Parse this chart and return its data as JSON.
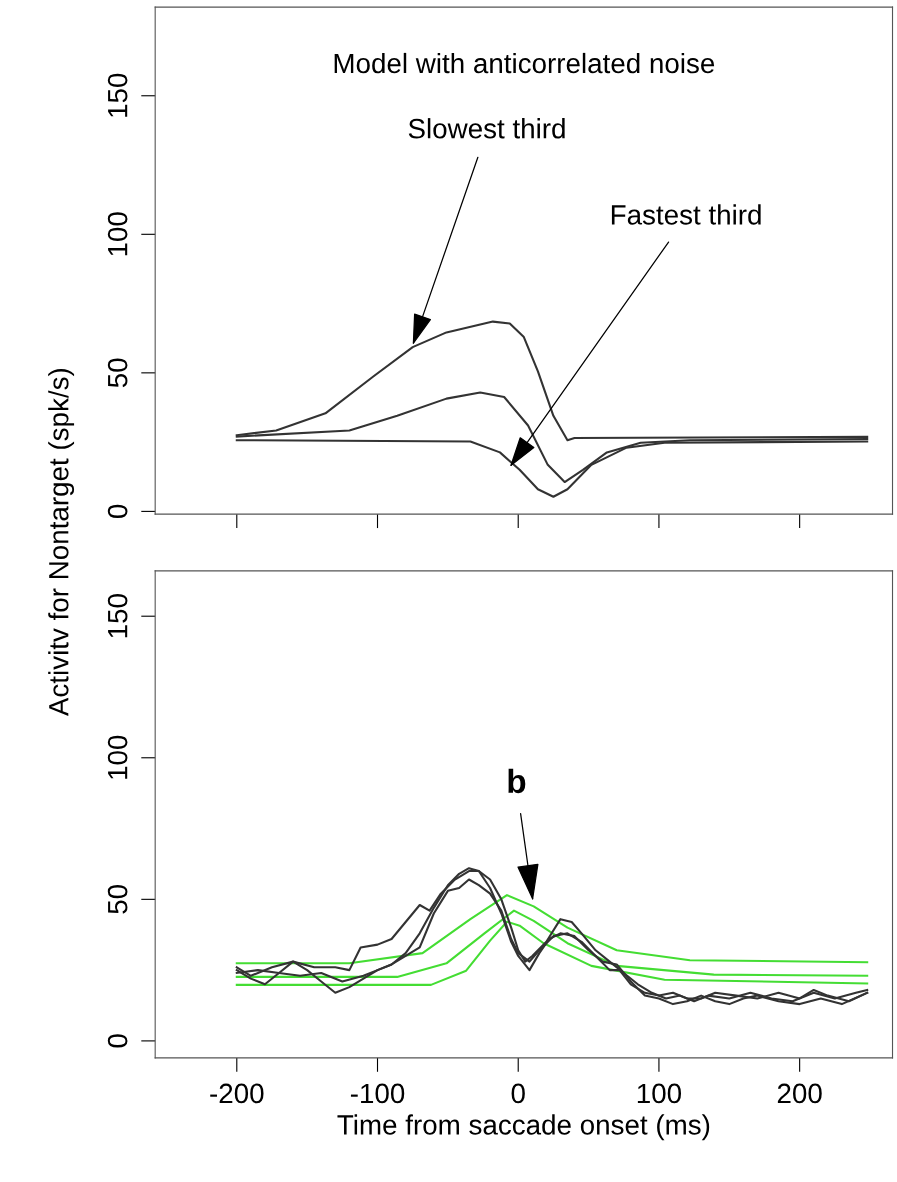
{
  "chart_data": [
    {
      "type": "line",
      "title": "Model with anticorrelated noise",
      "xlim": [
        -258,
        266
      ],
      "ylim": [
        -1,
        182
      ],
      "xticks": [
        -200,
        -100,
        0,
        100,
        200
      ],
      "yticks": [
        0,
        50,
        100,
        150
      ],
      "tick_labels": "y",
      "marker": "none",
      "line_style": "solid",
      "annotations": [
        {
          "text": "Slowest third",
          "x": -75,
          "y": 60
        },
        {
          "text": "Fastest third",
          "x": -6,
          "y": 16
        }
      ],
      "series": [
        {
          "color": "#333333",
          "x": [
            -200,
            -172,
            -137,
            -103,
            -75,
            -51,
            -18,
            -6,
            4,
            14,
            25,
            35,
            40,
            248
          ],
          "values": [
            27.5,
            29.2,
            35.4,
            48.7,
            59.3,
            64.6,
            68.5,
            67.8,
            62.9,
            50.5,
            34.5,
            25.7,
            26.5,
            26.9
          ]
        },
        {
          "color": "#333333",
          "x": [
            -200,
            -120,
            -86,
            -51,
            -27,
            -10,
            7,
            21,
            33,
            46,
            63,
            87,
            122,
            248
          ],
          "values": [
            27.0,
            29.2,
            34.5,
            40.7,
            42.9,
            41.3,
            31.0,
            16.8,
            10.6,
            15.0,
            21.3,
            24.8,
            25.7,
            26.1
          ]
        },
        {
          "color": "#333333",
          "x": [
            -200,
            -34,
            -13,
            1,
            14,
            25,
            35,
            52,
            77,
            104,
            248
          ],
          "values": [
            25.7,
            25.2,
            21.3,
            15.0,
            8.0,
            5.3,
            8.0,
            16.8,
            23.0,
            24.8,
            25.2
          ]
        }
      ]
    },
    {
      "type": "line",
      "xlabel": "Time from saccade onset (ms)",
      "ylabel": "Activitv for Nontarget (spk/s)",
      "xlim": [
        -258,
        266
      ],
      "ylim": [
        -6,
        166
      ],
      "xticks": [
        -200,
        -100,
        0,
        100,
        200
      ],
      "yticks": [
        0,
        50,
        100,
        150
      ],
      "marker": "none",
      "line_style": "solid",
      "annotations": [
        {
          "text": "b",
          "x": 11,
          "y": 47.5
        }
      ],
      "series": [
        {
          "color": "#44dd33",
          "x": [
            -200,
            -120,
            -68,
            -34,
            -8,
            11,
            35,
            70,
            122,
            248
          ],
          "values": [
            27.4,
            27.4,
            31,
            43,
            51.5,
            47.5,
            40,
            32,
            28.5,
            27.8
          ]
        },
        {
          "color": "#44dd33",
          "x": [
            -200,
            -86,
            -51,
            -24,
            -3,
            11,
            35,
            70,
            139,
            248
          ],
          "values": [
            22.6,
            22.6,
            27.4,
            38,
            46,
            42.4,
            34.5,
            26.5,
            23.4,
            23
          ]
        },
        {
          "color": "#44dd33",
          "x": [
            -200,
            -62,
            -37,
            -20,
            -8,
            1,
            18,
            52,
            104,
            248
          ],
          "values": [
            19.8,
            19.8,
            24.8,
            35.4,
            42.1,
            40.7,
            34.5,
            26.5,
            21.6,
            20.3
          ]
        },
        {
          "color": "#333333",
          "x": [
            -200,
            -190,
            -175,
            -160,
            -145,
            -130,
            -120,
            -112,
            -100,
            -90,
            -80,
            -70,
            -63,
            -55,
            -45,
            -35,
            -28,
            -20,
            -12,
            -5,
            0,
            5,
            10,
            20,
            30,
            38,
            45,
            55,
            65,
            75,
            85,
            95,
            105,
            115,
            125,
            135,
            150,
            165,
            180,
            195,
            210,
            225,
            240,
            248
          ],
          "values": [
            26,
            23,
            26,
            28,
            26,
            26,
            25,
            33,
            34,
            36,
            42,
            48,
            46,
            52,
            57,
            60,
            60,
            57,
            50,
            40,
            32,
            28,
            30,
            35,
            43,
            42,
            38,
            32,
            28,
            24,
            20,
            17,
            15,
            16,
            14,
            16,
            15,
            17,
            15,
            14,
            17,
            15,
            17,
            18
          ]
        },
        {
          "color": "#333333",
          "x": [
            -200,
            -190,
            -180,
            -170,
            -160,
            -150,
            -140,
            -130,
            -120,
            -110,
            -100,
            -90,
            -80,
            -70,
            -60,
            -50,
            -42,
            -35,
            -28,
            -20,
            -12,
            -5,
            0,
            8,
            15,
            22,
            30,
            40,
            50,
            60,
            70,
            80,
            90,
            100,
            110,
            120,
            130,
            140,
            150,
            160,
            170,
            185,
            200,
            215,
            230,
            248
          ],
          "values": [
            25,
            22,
            20,
            24,
            28,
            25,
            21,
            17,
            19,
            22,
            25,
            27,
            31,
            38,
            47,
            55,
            59,
            61,
            60,
            54,
            45,
            35,
            30,
            25,
            31,
            36,
            38,
            37,
            32,
            28,
            27,
            21,
            16,
            15,
            13,
            14,
            16,
            14,
            13,
            15,
            16,
            14,
            13,
            15,
            13,
            17
          ]
        },
        {
          "color": "#333333",
          "x": [
            -200,
            -185,
            -170,
            -155,
            -140,
            -125,
            -110,
            -100,
            -90,
            -80,
            -70,
            -60,
            -50,
            -42,
            -35,
            -28,
            -20,
            -12,
            -5,
            0,
            8,
            15,
            25,
            35,
            45,
            55,
            65,
            72,
            80,
            90,
            100,
            110,
            120,
            130,
            140,
            155,
            170,
            185,
            200,
            210,
            220,
            235,
            248
          ],
          "values": [
            24,
            25,
            24,
            23,
            24,
            21,
            23,
            25,
            27,
            30,
            33,
            45,
            53,
            54,
            57,
            55,
            52,
            46,
            36,
            31,
            28,
            32,
            37,
            38,
            35,
            30,
            25,
            25,
            20,
            17,
            16,
            17,
            15,
            15,
            17,
            16,
            15,
            17,
            15,
            18,
            16,
            14,
            17
          ]
        }
      ]
    }
  ]
}
